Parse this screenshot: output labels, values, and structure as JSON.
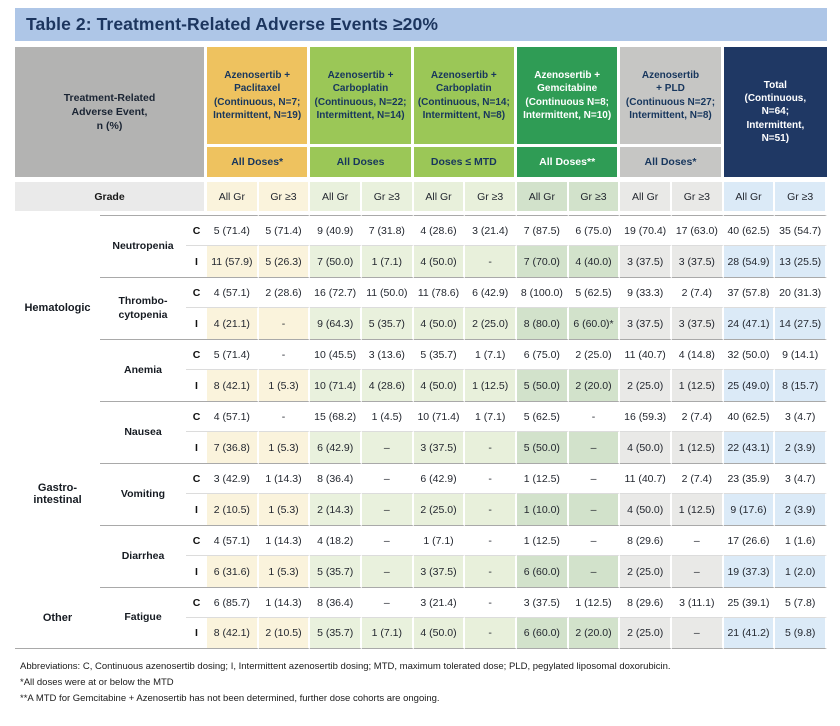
{
  "title": "Table 2: Treatment-Related Adverse Events ≥20%",
  "colors": {
    "title_bar": "#aec6e7",
    "title_text": "#1c355e",
    "header_gray": "#b3b3b2",
    "grade_strip": "#eaeaea",
    "dark_text": "#17365d",
    "body_text": "#23272f",
    "line_dark": "#a9a9a9",
    "line_light": "#dcdcdc"
  },
  "header": {
    "row_label": "Treatment-Related\nAdverse Event,\nn (%)",
    "grade_label": "Grade",
    "grade_cols": [
      "All Gr",
      "Gr ≥3"
    ],
    "groups": [
      {
        "key": "paclitaxel",
        "name": "Azenosertib +\nPaclitaxel\n(Continuous, N=7;\nIntermittent, N=19)",
        "sub": "All Doses*",
        "bg": "#eec25f",
        "fg": "#17365d",
        "tint": "#faf3dc"
      },
      {
        "key": "carboplatin-all",
        "name": "Azenosertib +\nCarboplatin\n(Continuous, N=22;\nIntermittent, N=14)",
        "sub": "All Doses",
        "bg": "#9bc757",
        "fg": "#17365d",
        "tint": "#e9f1dd"
      },
      {
        "key": "carboplatin-mtd",
        "name": "Azenosertib +\nCarboplatin\n(Continuous, N=14;\nIntermittent, N=8)",
        "sub": "Doses ≤ MTD",
        "bg": "#9bc757",
        "fg": "#17365d",
        "tint": "#e8f0db"
      },
      {
        "key": "gemcitabine",
        "name": "Azenosertib +\nGemcitabine\n(Continuous N=8;\nIntermittent, N=10)",
        "sub": "All Doses**",
        "bg": "#2f9c55",
        "fg": "#ffffff",
        "tint": "#d2e2cb"
      },
      {
        "key": "pld",
        "name": "Azenosertib\n+ PLD\n(Continuous N=27;\nIntermittent, N=8)",
        "sub": "All Doses*",
        "bg": "#c6c6c4",
        "fg": "#17365d",
        "tint": "#e9e9e7"
      },
      {
        "key": "total",
        "name": "Total\n(Continuous,\nN=64;\nIntermittent,\nN=51)",
        "sub": null,
        "bg": "#1f3864",
        "fg": "#ffffff",
        "tint": "#dbeaf7"
      }
    ]
  },
  "categories": [
    {
      "label": "Hematologic",
      "events": [
        {
          "name": "Neutropenia",
          "C": [
            "5 (71.4)",
            "5 (71.4)",
            "9 (40.9)",
            "7 (31.8)",
            "4 (28.6)",
            "3 (21.4)",
            "7 (87.5)",
            "6 (75.0)",
            "19 (70.4)",
            "17 (63.0)",
            "40 (62.5)",
            "35 (54.7)"
          ],
          "I": [
            "11 (57.9)",
            "5 (26.3)",
            "7 (50.0)",
            "1 (7.1)",
            "4 (50.0)",
            "-",
            "7 (70.0)",
            "4 (40.0)",
            "3 (37.5)",
            "3 (37.5)",
            "28 (54.9)",
            "13 (25.5)"
          ]
        },
        {
          "name": "Thrombo-\ncytopenia",
          "C": [
            "4 (57.1)",
            "2 (28.6)",
            "16 (72.7)",
            "11 (50.0)",
            "11 (78.6)",
            "6 (42.9)",
            "8 (100.0)",
            "5 (62.5)",
            "9 (33.3)",
            "2 (7.4)",
            "37 (57.8)",
            "20 (31.3)"
          ],
          "I": [
            "4 (21.1)",
            "-",
            "9 (64.3)",
            "5 (35.7)",
            "4 (50.0)",
            "2 (25.0)",
            "8 (80.0)",
            "6 (60.0)*",
            "3 (37.5)",
            "3 (37.5)",
            "24 (47.1)",
            "14 (27.5)"
          ]
        },
        {
          "name": "Anemia",
          "C": [
            "5 (71.4)",
            "-",
            "10 (45.5)",
            "3 (13.6)",
            "5 (35.7)",
            "1 (7.1)",
            "6 (75.0)",
            "2 (25.0)",
            "11 (40.7)",
            "4 (14.8)",
            "32 (50.0)",
            "9 (14.1)"
          ],
          "I": [
            "8 (42.1)",
            "1 (5.3)",
            "10 (71.4)",
            "4 (28.6)",
            "4 (50.0)",
            "1 (12.5)",
            "5 (50.0)",
            "2 (20.0)",
            "2 (25.0)",
            "1 (12.5)",
            "25 (49.0)",
            "8 (15.7)"
          ]
        }
      ]
    },
    {
      "label": "Gastro-\nintestinal",
      "events": [
        {
          "name": "Nausea",
          "C": [
            "4 (57.1)",
            "-",
            "15 (68.2)",
            "1 (4.5)",
            "10 (71.4)",
            "1 (7.1)",
            "5 (62.5)",
            "-",
            "16 (59.3)",
            "2 (7.4)",
            "40 (62.5)",
            "3 (4.7)"
          ],
          "I": [
            "7 (36.8)",
            "1 (5.3)",
            "6 (42.9)",
            "–",
            "3 (37.5)",
            "-",
            "5 (50.0)",
            "–",
            "4 (50.0)",
            "1 (12.5)",
            "22 (43.1)",
            "2 (3.9)"
          ]
        },
        {
          "name": "Vomiting",
          "C": [
            "3 (42.9)",
            "1 (14.3)",
            "8 (36.4)",
            "–",
            "6 (42.9)",
            "-",
            "1 (12.5)",
            "–",
            "11 (40.7)",
            "2 (7.4)",
            "23 (35.9)",
            "3 (4.7)"
          ],
          "I": [
            "2 (10.5)",
            "1 (5.3)",
            "2 (14.3)",
            "–",
            "2 (25.0)",
            "-",
            "1 (10.0)",
            "–",
            "4 (50.0)",
            "1 (12.5)",
            "9 (17.6)",
            "2 (3.9)"
          ]
        },
        {
          "name": "Diarrhea",
          "C": [
            "4 (57.1)",
            "1 (14.3)",
            "4 (18.2)",
            "–",
            "1 (7.1)",
            "-",
            "1 (12.5)",
            "–",
            "8 (29.6)",
            "–",
            "17 (26.6)",
            "1 (1.6)"
          ],
          "I": [
            "6 (31.6)",
            "1 (5.3)",
            "5 (35.7)",
            "–",
            "3 (37.5)",
            "-",
            "6 (60.0)",
            "–",
            "2 (25.0)",
            "–",
            "19 (37.3)",
            "1 (2.0)"
          ]
        }
      ]
    },
    {
      "label": "Other",
      "events": [
        {
          "name": "Fatigue",
          "C": [
            "6 (85.7)",
            "1 (14.3)",
            "8 (36.4)",
            "–",
            "3 (21.4)",
            "-",
            "3 (37.5)",
            "1 (12.5)",
            "8 (29.6)",
            "3 (11.1)",
            "25 (39.1)",
            "5 (7.8)"
          ],
          "I": [
            "8 (42.1)",
            "2 (10.5)",
            "5 (35.7)",
            "1 (7.1)",
            "4 (50.0)",
            "-",
            "6 (60.0)",
            "2 (20.0)",
            "2 (25.0)",
            "–",
            "21 (41.2)",
            "5 (9.8)"
          ]
        }
      ]
    }
  ],
  "footnotes": [
    "Abbreviations: C, Continuous azenosertib dosing; I, Intermittent azenosertib dosing; MTD, maximum tolerated dose; PLD, pegylated liposomal doxorubicin.",
    "*All doses were at or below the MTD",
    "**A MTD for Gemcitabine + Azenosertib has not been determined, further dose cohorts are ongoing."
  ]
}
